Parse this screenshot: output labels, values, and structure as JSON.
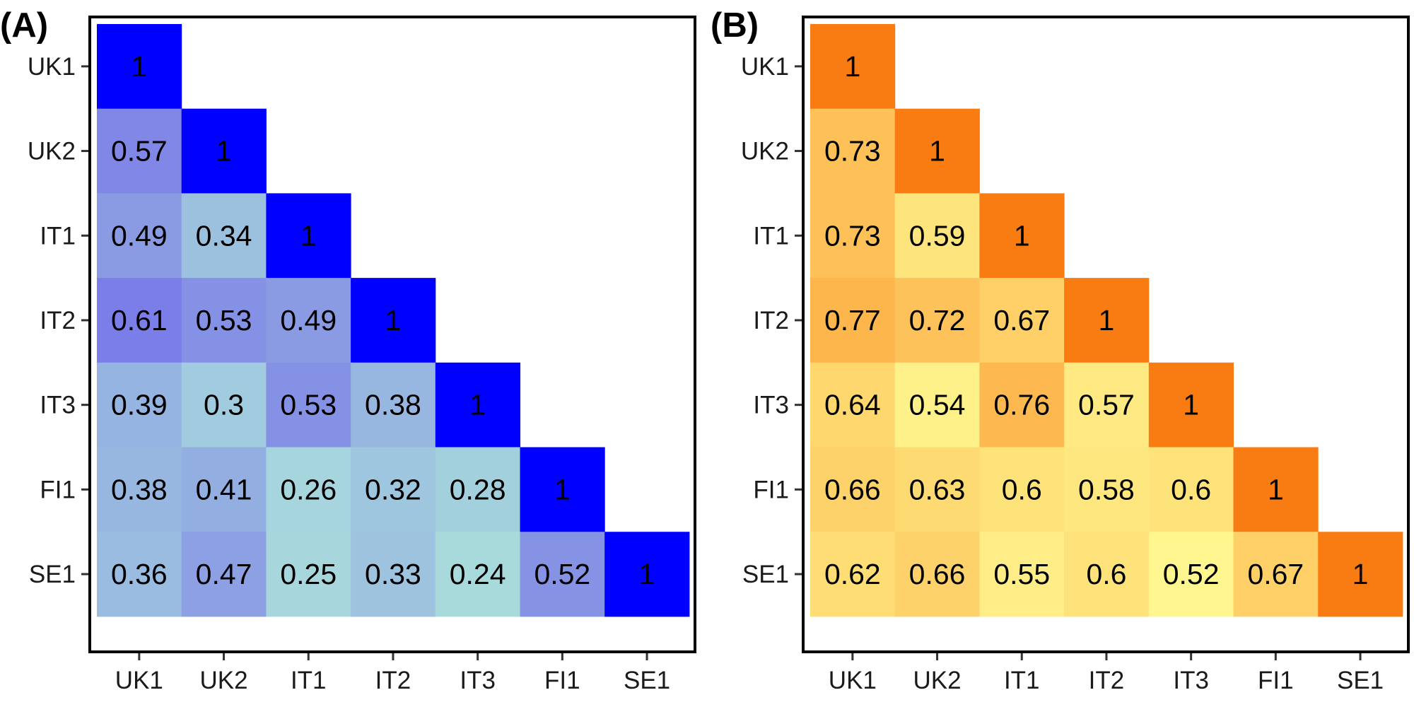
{
  "chart_data": [
    {
      "type": "heatmap",
      "panel_label": "(A)",
      "variables": [
        "UK1",
        "UK2",
        "IT1",
        "IT2",
        "IT3",
        "FI1",
        "SE1"
      ],
      "matrix": [
        [
          "1"
        ],
        [
          "0.57",
          "1"
        ],
        [
          "0.49",
          "0.34",
          "1"
        ],
        [
          "0.61",
          "0.53",
          "0.49",
          "1"
        ],
        [
          "0.39",
          "0.3",
          "0.53",
          "0.38",
          "1"
        ],
        [
          "0.38",
          "0.41",
          "0.26",
          "0.32",
          "0.28",
          "1"
        ],
        [
          "0.36",
          "0.47",
          "0.25",
          "0.33",
          "0.24",
          "0.52",
          "1"
        ]
      ],
      "color_scale": {
        "low": "#a8dadc",
        "mid": "#7a7ae8",
        "high": "#0000ff"
      },
      "layout": "lower-triangle",
      "grid": false,
      "legend": "none"
    },
    {
      "type": "heatmap",
      "panel_label": "(B)",
      "variables": [
        "UK1",
        "UK2",
        "IT1",
        "IT2",
        "IT3",
        "FI1",
        "SE1"
      ],
      "matrix": [
        [
          "1"
        ],
        [
          "0.73",
          "1"
        ],
        [
          "0.73",
          "0.59",
          "1"
        ],
        [
          "0.77",
          "0.72",
          "0.67",
          "1"
        ],
        [
          "0.64",
          "0.54",
          "0.76",
          "0.57",
          "1"
        ],
        [
          "0.66",
          "0.63",
          "0.6",
          "0.58",
          "0.6",
          "1"
        ],
        [
          "0.62",
          "0.66",
          "0.55",
          "0.6",
          "0.52",
          "0.67",
          "1"
        ]
      ],
      "color_scale": {
        "low": "#fff68f",
        "mid": "#fdb94f",
        "high": "#f97c12"
      },
      "layout": "lower-triangle",
      "grid": false,
      "legend": "none"
    }
  ]
}
